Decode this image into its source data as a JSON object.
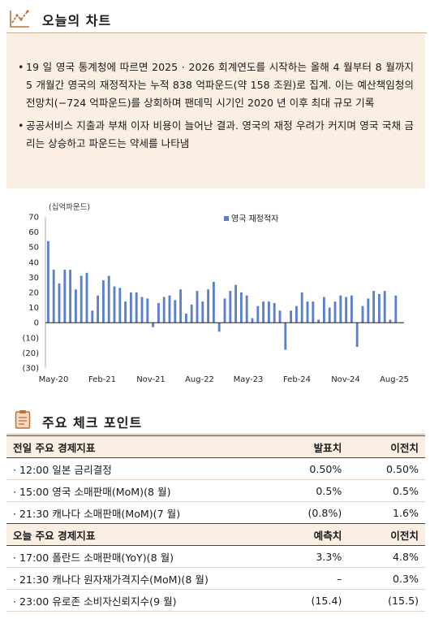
{
  "header": {
    "title": "오늘의 차트",
    "icon": "chart-trend-icon"
  },
  "summary": {
    "bullets": [
      "19 일 영국 통계청에 따르면 2025 · 2026 회계연도를 시작하는 올해 4 월부터 8 월까지 5 개월간 영국의 재정적자는 누적 838 억파운드(약 158 조원)로 집계. 이는 예산책임청의 전망치(−724 억파운드)를 상회하며 팬데믹 시기인 2020 년 이후 최대 규모 기록",
      "공공서비스 지출과 부채 이자 비용이 늘어난 결과. 영국의 재정 우려가 커지며 영국 국채 금리는 상승하고 파운드는 약세를 나타냄"
    ]
  },
  "chart_data": {
    "type": "bar",
    "unit_label": "(십억파운드)",
    "x_tick_labels": [
      "May-20",
      "Feb-21",
      "Nov-21",
      "Aug-22",
      "May-23",
      "Feb-24",
      "Nov-24",
      "Aug-25"
    ],
    "y_tick_labels": [
      "70",
      "60",
      "50",
      "40",
      "30",
      "20",
      "10",
      "0",
      "(10)",
      "(20)",
      "(30)"
    ],
    "ylim": [
      -30,
      70
    ],
    "legend": "top-center",
    "accent_color": "#5b7fcf",
    "series": [
      {
        "name": "영국 재정적자",
        "x": [
          "2020-04",
          "2020-05",
          "2020-06",
          "2020-07",
          "2020-08",
          "2020-09",
          "2020-10",
          "2020-11",
          "2020-12",
          "2021-01",
          "2021-02",
          "2021-03",
          "2021-04",
          "2021-05",
          "2021-06",
          "2021-07",
          "2021-08",
          "2021-09",
          "2021-10",
          "2021-11",
          "2021-12",
          "2022-01",
          "2022-02",
          "2022-03",
          "2022-04",
          "2022-05",
          "2022-06",
          "2022-07",
          "2022-08",
          "2022-09",
          "2022-10",
          "2022-11",
          "2022-12",
          "2023-01",
          "2023-02",
          "2023-03",
          "2023-04",
          "2023-05",
          "2023-06",
          "2023-07",
          "2023-08",
          "2023-09",
          "2023-10",
          "2023-11",
          "2023-12",
          "2024-01",
          "2024-02",
          "2024-03",
          "2024-04",
          "2024-05",
          "2024-06",
          "2024-07",
          "2024-08",
          "2024-09",
          "2024-10",
          "2024-11",
          "2024-12",
          "2025-01",
          "2025-02",
          "2025-03",
          "2025-04",
          "2025-05",
          "2025-06",
          "2025-07",
          "2025-08"
        ],
        "values": [
          54,
          35,
          26,
          35,
          35,
          22,
          31,
          33,
          8,
          18,
          28,
          31,
          24,
          23,
          14,
          20,
          20,
          17,
          16,
          -3,
          13,
          17,
          18,
          15,
          22,
          6,
          12,
          21,
          14,
          22,
          27,
          -6,
          16,
          21,
          25,
          20,
          18,
          3,
          11,
          14,
          14,
          13,
          8,
          -18,
          8,
          11,
          20,
          14,
          14,
          2,
          17,
          10,
          14,
          18,
          17,
          18,
          -16,
          11,
          16,
          21,
          19,
          21,
          2,
          18,
          0
        ]
      }
    ]
  }
}
